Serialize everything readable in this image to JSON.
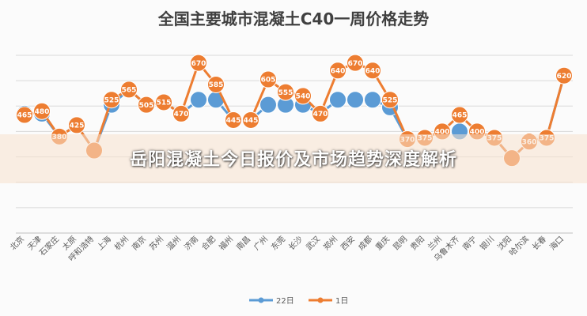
{
  "banner": {
    "text": "岳阳混凝土今日报价及市场趋势深度解析"
  },
  "chart_data": {
    "type": "line",
    "title": "全国主要城市混凝土C40一周价格走势",
    "categories": [
      "北京",
      "天津",
      "石家庄",
      "太原",
      "呼和浩特",
      "上海",
      "杭州",
      "南京",
      "苏州",
      "温州",
      "济南",
      "合肥",
      "福州",
      "南昌",
      "广州",
      "东莞",
      "长沙",
      "武汉",
      "郑州",
      "西安",
      "成都",
      "重庆",
      "昆明",
      "贵阳",
      "兰州",
      "乌鲁木齐",
      "南宁",
      "银川",
      "沈阳",
      "哈尔滨",
      "长春",
      "海口"
    ],
    "series": [
      {
        "name": "22日",
        "color": "#5b9bd5",
        "values": [
          470,
          470,
          380,
          425,
          325,
          505,
          565,
          505,
          515,
          470,
          525,
          525,
          445,
          445,
          505,
          505,
          505,
          470,
          525,
          525,
          525,
          495,
          370,
          375,
          400,
          400,
          400,
          375,
          295,
          360,
          375,
          620
        ],
        "labels_visible": [
          true,
          true,
          true,
          true,
          true,
          false,
          false,
          false,
          false,
          true,
          false,
          false,
          true,
          true,
          false,
          false,
          false,
          true,
          false,
          false,
          false,
          false,
          true,
          true,
          true,
          false,
          true,
          true,
          true,
          true,
          true,
          true
        ]
      },
      {
        "name": "1日",
        "color": "#ed7d31",
        "values": [
          465,
          480,
          380,
          425,
          325,
          525,
          565,
          505,
          515,
          470,
          670,
          585,
          445,
          445,
          605,
          555,
          540,
          470,
          640,
          670,
          640,
          525,
          370,
          375,
          400,
          465,
          400,
          375,
          295,
          360,
          375,
          620
        ],
        "labels_visible": [
          true,
          true,
          true,
          true,
          false,
          true,
          true,
          true,
          true,
          true,
          true,
          true,
          true,
          true,
          true,
          true,
          true,
          true,
          true,
          true,
          true,
          true,
          true,
          true,
          true,
          true,
          true,
          true,
          false,
          true,
          true,
          true
        ]
      }
    ],
    "ylim": [
      0,
      700
    ],
    "grid": true,
    "legend": "bottom"
  }
}
